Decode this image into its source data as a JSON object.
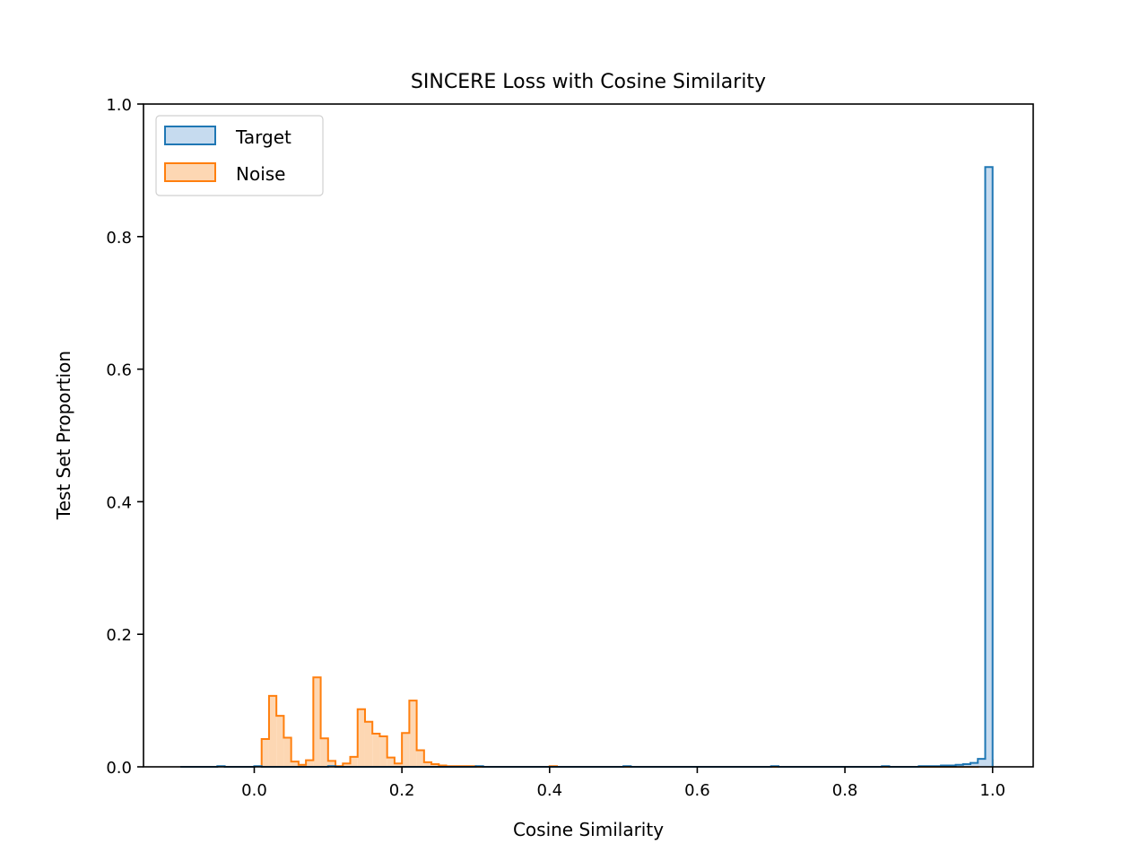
{
  "chart_data": {
    "type": "histogram",
    "title": "SINCERE Loss with Cosine Similarity",
    "xlabel": "Cosine Similarity",
    "ylabel": "Test Set Proportion",
    "xlim": [
      -0.15,
      1.055
    ],
    "ylim": [
      0,
      1.0
    ],
    "xticks": [
      0.0,
      0.2,
      0.4,
      0.6,
      0.8,
      1.0
    ],
    "xtick_labels": [
      "0.0",
      "0.2",
      "0.4",
      "0.6",
      "0.8",
      "1.0"
    ],
    "yticks": [
      0.0,
      0.2,
      0.4,
      0.6,
      0.8,
      1.0
    ],
    "ytick_labels": [
      "0.0",
      "0.2",
      "0.4",
      "0.6",
      "0.8",
      "1.0"
    ],
    "grid": false,
    "legend_position": "top-left",
    "bin_width": 0.01,
    "series": [
      {
        "name": "Target",
        "color": "#1f77b4",
        "fill": "#c6dbef",
        "bins": [
          [
            -0.1,
            0.0
          ],
          [
            -0.05,
            0.001
          ],
          [
            0.0,
            0.001
          ],
          [
            0.05,
            0.0
          ],
          [
            0.1,
            0.001
          ],
          [
            0.2,
            0.0
          ],
          [
            0.3,
            0.001
          ],
          [
            0.5,
            0.001
          ],
          [
            0.7,
            0.001
          ],
          [
            0.85,
            0.001
          ],
          [
            0.9,
            0.001
          ],
          [
            0.91,
            0.001
          ],
          [
            0.92,
            0.001
          ],
          [
            0.93,
            0.002
          ],
          [
            0.94,
            0.002
          ],
          [
            0.95,
            0.003
          ],
          [
            0.96,
            0.004
          ],
          [
            0.97,
            0.006
          ],
          [
            0.98,
            0.012
          ],
          [
            0.99,
            0.905
          ]
        ]
      },
      {
        "name": "Noise",
        "color": "#ff7f0e",
        "fill": "#fdd7b3",
        "bins": [
          [
            0.01,
            0.042
          ],
          [
            0.02,
            0.107
          ],
          [
            0.03,
            0.077
          ],
          [
            0.04,
            0.044
          ],
          [
            0.05,
            0.008
          ],
          [
            0.06,
            0.003
          ],
          [
            0.07,
            0.01
          ],
          [
            0.08,
            0.135
          ],
          [
            0.09,
            0.043
          ],
          [
            0.1,
            0.009
          ],
          [
            0.11,
            0.001
          ],
          [
            0.12,
            0.005
          ],
          [
            0.13,
            0.015
          ],
          [
            0.14,
            0.087
          ],
          [
            0.15,
            0.068
          ],
          [
            0.16,
            0.05
          ],
          [
            0.17,
            0.046
          ],
          [
            0.18,
            0.014
          ],
          [
            0.19,
            0.005
          ],
          [
            0.2,
            0.051
          ],
          [
            0.21,
            0.1
          ],
          [
            0.22,
            0.025
          ],
          [
            0.23,
            0.007
          ],
          [
            0.24,
            0.004
          ],
          [
            0.25,
            0.002
          ],
          [
            0.26,
            0.001
          ],
          [
            0.27,
            0.001
          ],
          [
            0.28,
            0.001
          ],
          [
            0.29,
            0.001
          ],
          [
            0.3,
            0.0
          ],
          [
            0.4,
            0.001
          ],
          [
            0.98,
            0.002
          ],
          [
            0.99,
            0.01
          ]
        ]
      }
    ]
  }
}
